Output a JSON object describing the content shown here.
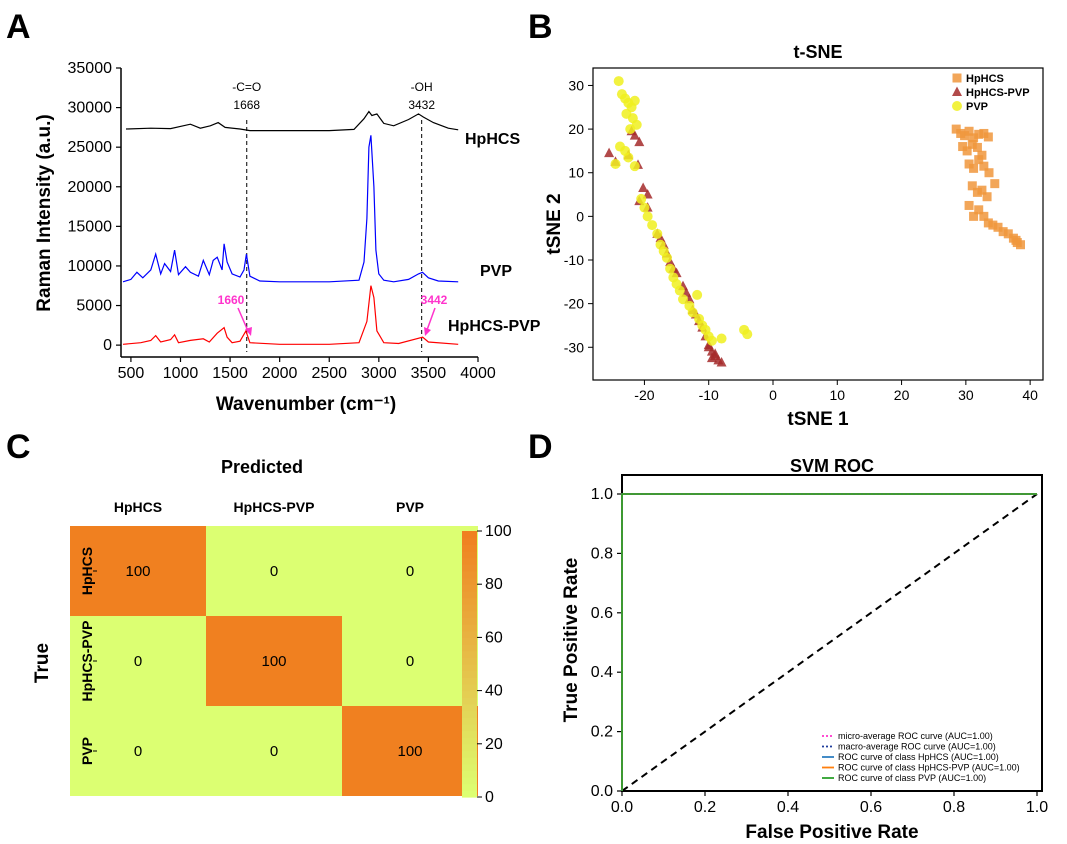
{
  "panels": {
    "a": "A",
    "b": "B",
    "c": "C",
    "d": "D"
  },
  "chart_data": [
    {
      "type": "line",
      "xlabel": "Wavenumber (cm⁻¹)",
      "ylabel": "Raman Intensity (a.u.)",
      "xlim": [
        400,
        4000
      ],
      "ylim": [
        -1500,
        35000
      ],
      "xticks": [
        "500",
        "1000",
        "1500",
        "2000",
        "2500",
        "3000",
        "3500",
        "4000"
      ],
      "yticks": [
        "0",
        "5000",
        "10000",
        "15000",
        "20000",
        "25000",
        "30000",
        "35000"
      ],
      "series": [
        {
          "name": "HpHCS",
          "color": "#000000",
          "x": [
            450,
            700,
            900,
            1100,
            1200,
            1300,
            1380,
            1450,
            1600,
            1700,
            2000,
            2500,
            2750,
            2850,
            2900,
            2930,
            2980,
            3050,
            3150,
            3300,
            3400,
            3450,
            3550,
            3700,
            3800
          ],
          "y": [
            27300,
            27400,
            27350,
            27900,
            27400,
            27700,
            28100,
            27500,
            27300,
            27100,
            27100,
            27100,
            27250,
            28600,
            29500,
            29000,
            29200,
            28000,
            27700,
            28500,
            29200,
            28800,
            28100,
            27400,
            27200
          ]
        },
        {
          "name": "PVP",
          "color": "#0000ff",
          "x": [
            420,
            500,
            560,
            620,
            700,
            750,
            800,
            840,
            900,
            940,
            980,
            1050,
            1100,
            1180,
            1230,
            1290,
            1330,
            1370,
            1420,
            1440,
            1470,
            1520,
            1600,
            1640,
            1665,
            1700,
            1800,
            2000,
            2500,
            2800,
            2850,
            2880,
            2900,
            2920,
            2950,
            2970,
            3000,
            3050,
            3150,
            3300,
            3400,
            3440,
            3500,
            3600,
            3800
          ],
          "y": [
            8000,
            8300,
            9200,
            8500,
            9500,
            11500,
            9000,
            10300,
            9300,
            12000,
            8900,
            9900,
            9200,
            8700,
            10700,
            8900,
            10700,
            11100,
            9500,
            12800,
            10500,
            9000,
            8600,
            9500,
            11500,
            8700,
            8100,
            8000,
            8000,
            8200,
            10500,
            16000,
            25000,
            26500,
            20000,
            12000,
            9000,
            8200,
            8000,
            8300,
            9000,
            9200,
            8500,
            8100,
            8000
          ]
        },
        {
          "name": "HpHCS-PVP",
          "color": "#ff0000",
          "x": [
            420,
            600,
            700,
            750,
            800,
            900,
            940,
            980,
            1100,
            1230,
            1290,
            1370,
            1440,
            1470,
            1520,
            1600,
            1660,
            1700,
            2000,
            2500,
            2800,
            2880,
            2920,
            2950,
            2980,
            3050,
            3200,
            3442,
            3500,
            3800
          ],
          "y": [
            100,
            300,
            600,
            1200,
            400,
            700,
            1300,
            300,
            600,
            800,
            400,
            1500,
            2200,
            1000,
            300,
            500,
            1800,
            300,
            100,
            100,
            300,
            3000,
            7500,
            6000,
            1800,
            300,
            200,
            1000,
            400,
            100
          ]
        }
      ],
      "series_labels": [
        "HpHCS",
        "PVP",
        "HpHCS-PVP"
      ],
      "annotations": [
        {
          "text": "-C=O",
          "x": 1668
        },
        {
          "text": "1668",
          "x": 1668
        },
        {
          "text": "-OH",
          "x": 3432
        },
        {
          "text": "3432",
          "x": 3432
        },
        {
          "text": "1660",
          "x": 1660
        },
        {
          "text": "3442",
          "x": 3442
        }
      ]
    },
    {
      "type": "scatter",
      "title": "t-SNE",
      "xlabel": "tSNE 1",
      "ylabel": "tSNE 2",
      "xlim": [
        -28,
        42
      ],
      "ylim": [
        -37.5,
        34
      ],
      "xticks": [
        "-20",
        "-10",
        "0",
        "10",
        "20",
        "30",
        "40"
      ],
      "yticks": [
        "-30",
        "-20",
        "-10",
        "0",
        "10",
        "20",
        "30"
      ],
      "legend_position": "top-right",
      "series": [
        {
          "name": "HpHCS",
          "color": "#f0963c",
          "marker": "square",
          "x": [
            28.5,
            29.2,
            29.8,
            30.5,
            31.2,
            32,
            32.8,
            33.5,
            29.5,
            30.2,
            31,
            31.8,
            32.5,
            30.5,
            31.2,
            32,
            32.8,
            33.6,
            34.5,
            31,
            31.8,
            32.5,
            33.3,
            30.5,
            31.2,
            32,
            32.8,
            33.5,
            34.2,
            35,
            35.8,
            36.6,
            37.4,
            38,
            38.5,
            37.8
          ],
          "y": [
            20,
            19,
            18.5,
            19.5,
            18,
            18.8,
            19,
            18.2,
            16,
            15,
            16.5,
            15.8,
            14,
            12,
            11,
            13,
            11.5,
            10,
            7.5,
            7,
            5.5,
            6,
            4.5,
            2.5,
            0,
            1.5,
            0,
            -1.5,
            -2,
            -2.5,
            -3.5,
            -4,
            -5,
            -6,
            -6.5,
            -5.5
          ]
        },
        {
          "name": "HpHCS-PVP",
          "color": "#a52a2a",
          "marker": "triangle",
          "x": [
            -25.5,
            -24.5,
            -22,
            -21.5,
            -20.8,
            -21,
            -22.5,
            -20.2,
            -19.5,
            -20.8,
            -19.5,
            -18,
            -17.5,
            -17,
            -16.5,
            -16,
            -15.5,
            -15,
            -14,
            -13.5,
            -13,
            -12.5,
            -12,
            -11.5,
            -11,
            -10.5,
            -10,
            -9.5,
            -9,
            -8.5,
            -8,
            -9.5,
            -10,
            -9
          ],
          "y": [
            14.5,
            12.5,
            19.5,
            18.5,
            17,
            11.8,
            14,
            6.5,
            5,
            3.5,
            2,
            -4,
            -5,
            -6.5,
            -8.5,
            -10.5,
            -12,
            -13,
            -16,
            -17.5,
            -19,
            -21.5,
            -22.5,
            -24,
            -25.5,
            -27.5,
            -29.5,
            -31,
            -32,
            -33,
            -33.5,
            -32.5,
            -30,
            -31.5
          ]
        },
        {
          "name": "PVP",
          "color": "#f0f01e",
          "marker": "circle",
          "x": [
            -24,
            -23.5,
            -23,
            -22.5,
            -22,
            -21.5,
            -22.8,
            -21.8,
            -21.2,
            -22.2,
            -23.8,
            -23,
            -22.5,
            -24.5,
            -21.5,
            -20.5,
            -20,
            -19.5,
            -18.8,
            -18,
            -17.5,
            -17,
            -16.5,
            -16,
            -15.5,
            -15,
            -14.5,
            -14,
            -13,
            -12.5,
            -11.5,
            -11,
            -10.5,
            -10,
            -9.5,
            -8,
            -4.5,
            -4,
            -11.8
          ],
          "y": [
            31,
            28,
            27,
            26,
            25,
            26.5,
            23.5,
            22.5,
            21,
            20,
            16,
            15,
            13.5,
            12,
            11.5,
            4,
            2,
            0,
            -2,
            -4,
            -6.5,
            -8,
            -9.5,
            -12,
            -14,
            -15.5,
            -17,
            -19,
            -20.5,
            -22,
            -23.5,
            -25,
            -26,
            -27.5,
            -28.5,
            -28,
            -26,
            -27,
            -18
          ]
        }
      ]
    },
    {
      "type": "heatmap",
      "title": "Predicted",
      "xlabel": "Predicted",
      "ylabel": "True",
      "x_categories": [
        "HpHCS",
        "HpHCS-PVP",
        "PVP"
      ],
      "y_categories": [
        "HpHCS",
        "HpHCS-PVP",
        "PVP"
      ],
      "values": [
        [
          100,
          0,
          0
        ],
        [
          0,
          100,
          0
        ],
        [
          0,
          0,
          100
        ]
      ],
      "colorbar_ticks": [
        "0",
        "20",
        "40",
        "60",
        "80",
        "100"
      ],
      "vmin": 0,
      "vmax": 100,
      "colors": {
        "low": "#dcff72",
        "high": "#f08020"
      }
    },
    {
      "type": "line",
      "title": "SVM ROC",
      "xlabel": "False Positive Rate",
      "ylabel": "True Positive Rate",
      "xlim": [
        0,
        1
      ],
      "ylim": [
        0,
        1.05
      ],
      "xticks": [
        "0.0",
        "0.2",
        "0.4",
        "0.6",
        "0.8",
        "1.0"
      ],
      "yticks": [
        "0.0",
        "0.2",
        "0.4",
        "0.6",
        "0.8",
        "1.0"
      ],
      "legend_position": "bottom-right",
      "series": [
        {
          "name": "micro-average ROC curve (AUC=1.00)",
          "color": "#ff33cc",
          "style": "dotted",
          "x": [
            0,
            0,
            1
          ],
          "y": [
            0,
            1,
            1
          ]
        },
        {
          "name": "macro-average ROC curve (AUC=1.00)",
          "color": "#1f3c9c",
          "style": "dotted",
          "x": [
            0,
            0,
            1
          ],
          "y": [
            0,
            1,
            1
          ]
        },
        {
          "name": "ROC curve of class HpHCS (AUC=1.00)",
          "color": "#2f7fc1",
          "style": "solid",
          "x": [
            0,
            0,
            1
          ],
          "y": [
            0,
            1,
            1
          ]
        },
        {
          "name": "ROC curve of class HpHCS-PVP (AUC=1.00)",
          "color": "#ff7f0e",
          "style": "solid",
          "x": [
            0,
            0,
            1
          ],
          "y": [
            0,
            1,
            1
          ]
        },
        {
          "name": "ROC curve of class PVP (AUC=1.00)",
          "color": "#2ca02c",
          "style": "solid",
          "x": [
            0,
            0,
            1
          ],
          "y": [
            0,
            1,
            1
          ]
        },
        {
          "name": "",
          "color": "#000000",
          "style": "dashed",
          "x": [
            0,
            1
          ],
          "y": [
            0,
            1
          ]
        }
      ]
    }
  ]
}
